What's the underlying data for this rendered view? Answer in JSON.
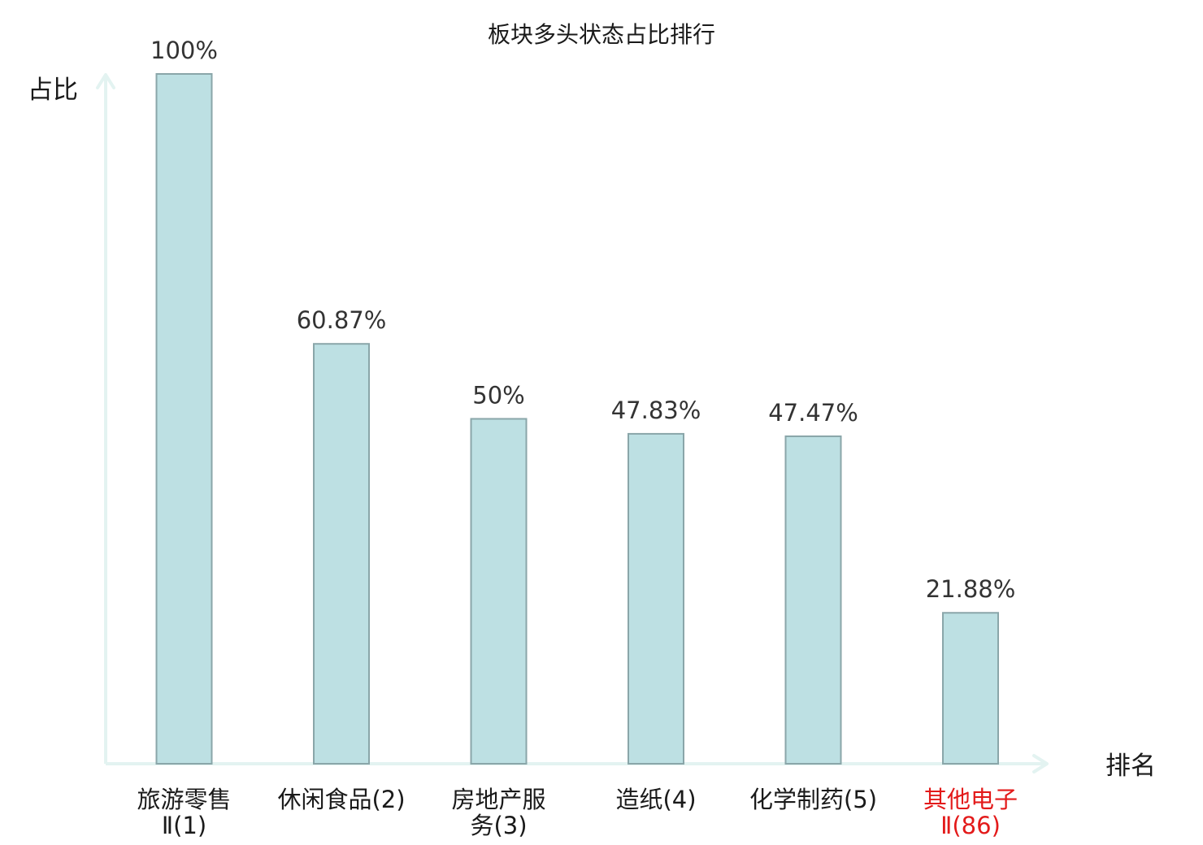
{
  "chart_data": {
    "type": "bar",
    "title": "板块多头状态占比排行",
    "ylabel": "占比",
    "xlabel": "排名",
    "ylim": [
      0,
      100
    ],
    "grid": false,
    "categories": [
      [
        "旅游零售",
        "Ⅱ(1)"
      ],
      [
        "休闲食品(2)"
      ],
      [
        "房地产服",
        "务(3)"
      ],
      [
        "造纸(4)"
      ],
      [
        "化学制药(5)"
      ],
      [
        "其他电子",
        "Ⅱ(86)"
      ]
    ],
    "values": [
      100,
      60.87,
      50,
      47.83,
      47.47,
      21.88
    ],
    "value_labels": [
      "100%",
      "60.87%",
      "50%",
      "47.83%",
      "47.47%",
      "21.88%"
    ],
    "highlight_index": 5,
    "colors": {
      "bar_fill": "#bde0e3",
      "bar_stroke": "#8aa6a9",
      "axis": "#e3f3f1",
      "text": "#1a1a1a",
      "value_text": "#333333",
      "highlight": "#e31a1a"
    }
  }
}
